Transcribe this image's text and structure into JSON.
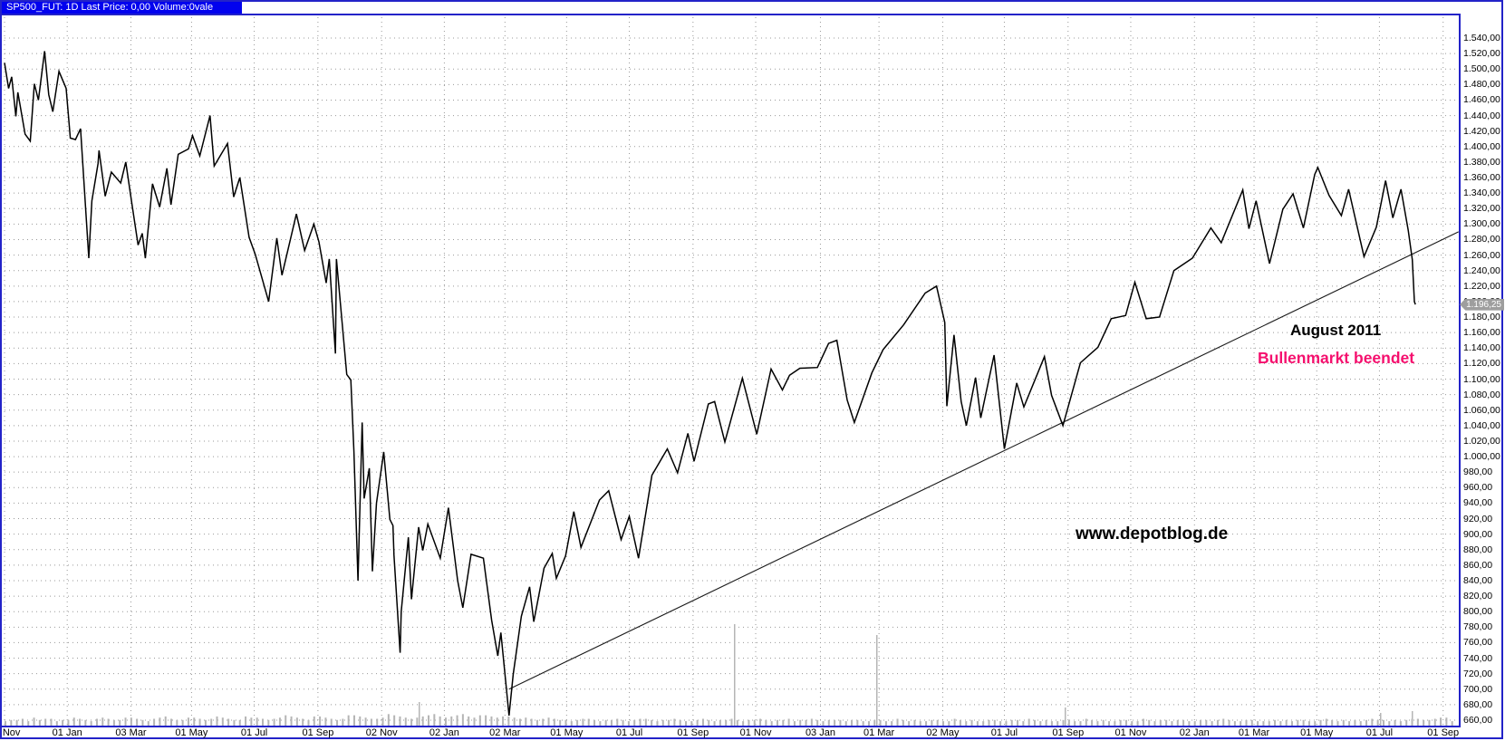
{
  "window": {
    "title_bar": "SP500_FUT: 1D Last Price: 0,00 Volume:0vale"
  },
  "annotations": {
    "august": "August 2011",
    "bullenmarkt": "Bullenmarkt beendet",
    "watermark": "www.depotblog.de"
  },
  "last_price_label": "1.196,25",
  "colors": {
    "frame_blue": "#2323c8",
    "titlebar_blue": "#0202ee",
    "grid_gray": "#999999",
    "volume_gray": "#b5b5b5",
    "annotation_pink": "#f5106e",
    "series_black": "#000000",
    "tag_gray": "#9e9e9e"
  },
  "chart_data": {
    "type": "line",
    "title": "SP500_FUT: 1D Last Price: 0,00 Volume:0vale",
    "xlabel": "",
    "ylabel": "",
    "grid": "dotted",
    "legend_position": "none",
    "ylim": [
      660,
      1540
    ],
    "ytick_step": 20,
    "ytick_format": "german-decimal ,00",
    "x_range": [
      "2007-11-01",
      "2011-09-18"
    ],
    "x_ticks": [
      {
        "label": "01 Nov",
        "date": "2007-11-01"
      },
      {
        "label": "01 Jan",
        "date": "2008-01-01"
      },
      {
        "label": "03 Mar",
        "date": "2008-03-03"
      },
      {
        "label": "01 May",
        "date": "2008-05-01"
      },
      {
        "label": "01 Jul",
        "date": "2008-07-01"
      },
      {
        "label": "01 Sep",
        "date": "2008-09-01"
      },
      {
        "label": "02 Nov",
        "date": "2008-11-02"
      },
      {
        "label": "02 Jan",
        "date": "2009-01-02"
      },
      {
        "label": "02 Mar",
        "date": "2009-03-02"
      },
      {
        "label": "01 May",
        "date": "2009-05-01"
      },
      {
        "label": "01 Jul",
        "date": "2009-07-01"
      },
      {
        "label": "01 Sep",
        "date": "2009-09-01"
      },
      {
        "label": "01 Nov",
        "date": "2009-11-01"
      },
      {
        "label": "03 Jan",
        "date": "2010-01-03"
      },
      {
        "label": "01 Mar",
        "date": "2010-03-01"
      },
      {
        "label": "02 May",
        "date": "2010-05-02"
      },
      {
        "label": "01 Jul",
        "date": "2010-07-01"
      },
      {
        "label": "01 Sep",
        "date": "2010-09-01"
      },
      {
        "label": "01 Nov",
        "date": "2010-11-01"
      },
      {
        "label": "02 Jan",
        "date": "2011-01-02"
      },
      {
        "label": "01 Mar",
        "date": "2011-03-01"
      },
      {
        "label": "01 May",
        "date": "2011-05-01"
      },
      {
        "label": "01 Jul",
        "date": "2011-07-01"
      },
      {
        "label": "01 Sep",
        "date": "2011-09-01"
      }
    ],
    "last_price": 1196.25,
    "series": [
      {
        "name": "SP500_FUT daily last price",
        "points": [
          [
            "2007-11-01",
            1508
          ],
          [
            "2007-11-05",
            1475
          ],
          [
            "2007-11-08",
            1490
          ],
          [
            "2007-11-12",
            1439
          ],
          [
            "2007-11-14",
            1470
          ],
          [
            "2007-11-21",
            1416
          ],
          [
            "2007-11-26",
            1407
          ],
          [
            "2007-11-30",
            1481
          ],
          [
            "2007-12-04",
            1460
          ],
          [
            "2007-12-10",
            1523
          ],
          [
            "2007-12-14",
            1467
          ],
          [
            "2007-12-18",
            1445
          ],
          [
            "2007-12-24",
            1497
          ],
          [
            "2007-12-31",
            1475
          ],
          [
            "2008-01-04",
            1411
          ],
          [
            "2008-01-09",
            1409
          ],
          [
            "2008-01-14",
            1423
          ],
          [
            "2008-01-22",
            1256
          ],
          [
            "2008-01-25",
            1330
          ],
          [
            "2008-01-31",
            1378
          ],
          [
            "2008-02-01",
            1395
          ],
          [
            "2008-02-07",
            1336
          ],
          [
            "2008-02-13",
            1367
          ],
          [
            "2008-02-22",
            1353
          ],
          [
            "2008-02-27",
            1380
          ],
          [
            "2008-03-04",
            1326
          ],
          [
            "2008-03-10",
            1273
          ],
          [
            "2008-03-14",
            1288
          ],
          [
            "2008-03-17",
            1256
          ],
          [
            "2008-03-24",
            1352
          ],
          [
            "2008-03-31",
            1322
          ],
          [
            "2008-04-07",
            1372
          ],
          [
            "2008-04-11",
            1325
          ],
          [
            "2008-04-18",
            1390
          ],
          [
            "2008-04-28",
            1397
          ],
          [
            "2008-05-02",
            1414
          ],
          [
            "2008-05-09",
            1388
          ],
          [
            "2008-05-19",
            1440
          ],
          [
            "2008-05-23",
            1375
          ],
          [
            "2008-06-05",
            1404
          ],
          [
            "2008-06-11",
            1335
          ],
          [
            "2008-06-17",
            1360
          ],
          [
            "2008-06-26",
            1283
          ],
          [
            "2008-07-02",
            1261
          ],
          [
            "2008-07-15",
            1200
          ],
          [
            "2008-07-23",
            1282
          ],
          [
            "2008-07-28",
            1234
          ],
          [
            "2008-08-11",
            1313
          ],
          [
            "2008-08-19",
            1266
          ],
          [
            "2008-08-28",
            1300
          ],
          [
            "2008-09-02",
            1277
          ],
          [
            "2008-09-09",
            1224
          ],
          [
            "2008-09-12",
            1255
          ],
          [
            "2008-09-18",
            1133
          ],
          [
            "2008-09-19",
            1255
          ],
          [
            "2008-09-29",
            1106
          ],
          [
            "2008-10-03",
            1099
          ],
          [
            "2008-10-06",
            1007
          ],
          [
            "2008-10-10",
            840
          ],
          [
            "2008-10-14",
            1044
          ],
          [
            "2008-10-16",
            946
          ],
          [
            "2008-10-21",
            985
          ],
          [
            "2008-10-24",
            852
          ],
          [
            "2008-10-28",
            940
          ],
          [
            "2008-11-04",
            1006
          ],
          [
            "2008-11-10",
            919
          ],
          [
            "2008-11-13",
            911
          ],
          [
            "2008-11-14",
            873
          ],
          [
            "2008-11-20",
            747
          ],
          [
            "2008-11-21",
            800
          ],
          [
            "2008-11-28",
            896
          ],
          [
            "2008-12-01",
            816
          ],
          [
            "2008-12-08",
            909
          ],
          [
            "2008-12-12",
            879
          ],
          [
            "2008-12-17",
            913
          ],
          [
            "2008-12-29",
            869
          ],
          [
            "2009-01-06",
            934
          ],
          [
            "2009-01-15",
            840
          ],
          [
            "2009-01-20",
            805
          ],
          [
            "2009-01-28",
            874
          ],
          [
            "2009-02-09",
            869
          ],
          [
            "2009-02-17",
            789
          ],
          [
            "2009-02-23",
            743
          ],
          [
            "2009-02-26",
            773
          ],
          [
            "2009-03-06",
            666
          ],
          [
            "2009-03-10",
            719
          ],
          [
            "2009-03-18",
            794
          ],
          [
            "2009-03-26",
            832
          ],
          [
            "2009-03-30",
            787
          ],
          [
            "2009-04-09",
            856
          ],
          [
            "2009-04-17",
            875
          ],
          [
            "2009-04-21",
            843
          ],
          [
            "2009-04-30",
            872
          ],
          [
            "2009-05-08",
            929
          ],
          [
            "2009-05-15",
            883
          ],
          [
            "2009-06-02",
            944
          ],
          [
            "2009-06-11",
            956
          ],
          [
            "2009-06-23",
            893
          ],
          [
            "2009-07-01",
            923
          ],
          [
            "2009-07-10",
            869
          ],
          [
            "2009-07-23",
            976
          ],
          [
            "2009-08-07",
            1010
          ],
          [
            "2009-08-17",
            979
          ],
          [
            "2009-08-27",
            1030
          ],
          [
            "2009-09-02",
            994
          ],
          [
            "2009-09-16",
            1068
          ],
          [
            "2009-09-22",
            1071
          ],
          [
            "2009-10-02",
            1019
          ],
          [
            "2009-10-19",
            1101
          ],
          [
            "2009-11-02",
            1029
          ],
          [
            "2009-11-16",
            1113
          ],
          [
            "2009-11-27",
            1086
          ],
          [
            "2009-12-04",
            1105
          ],
          [
            "2009-12-14",
            1114
          ],
          [
            "2009-12-31",
            1115
          ],
          [
            "2010-01-11",
            1146
          ],
          [
            "2010-01-19",
            1150
          ],
          [
            "2010-01-29",
            1073
          ],
          [
            "2010-02-05",
            1044
          ],
          [
            "2010-02-22",
            1108
          ],
          [
            "2010-03-05",
            1138
          ],
          [
            "2010-03-25",
            1170
          ],
          [
            "2010-04-15",
            1211
          ],
          [
            "2010-04-26",
            1220
          ],
          [
            "2010-05-04",
            1173
          ],
          [
            "2010-05-06",
            1065
          ],
          [
            "2010-05-13",
            1157
          ],
          [
            "2010-05-20",
            1071
          ],
          [
            "2010-05-25",
            1040
          ],
          [
            "2010-06-03",
            1102
          ],
          [
            "2010-06-08",
            1050
          ],
          [
            "2010-06-21",
            1131
          ],
          [
            "2010-07-01",
            1010
          ],
          [
            "2010-07-13",
            1095
          ],
          [
            "2010-07-20",
            1064
          ],
          [
            "2010-08-09",
            1129
          ],
          [
            "2010-08-16",
            1079
          ],
          [
            "2010-08-27",
            1040
          ],
          [
            "2010-09-13",
            1121
          ],
          [
            "2010-09-30",
            1141
          ],
          [
            "2010-10-13",
            1178
          ],
          [
            "2010-10-27",
            1182
          ],
          [
            "2010-11-05",
            1225
          ],
          [
            "2010-11-16",
            1178
          ],
          [
            "2010-11-29",
            1180
          ],
          [
            "2010-12-13",
            1240
          ],
          [
            "2010-12-31",
            1256
          ],
          [
            "2011-01-18",
            1295
          ],
          [
            "2011-01-28",
            1276
          ],
          [
            "2011-02-18",
            1344
          ],
          [
            "2011-02-24",
            1294
          ],
          [
            "2011-03-03",
            1330
          ],
          [
            "2011-03-16",
            1249
          ],
          [
            "2011-03-29",
            1319
          ],
          [
            "2011-04-08",
            1339
          ],
          [
            "2011-04-18",
            1295
          ],
          [
            "2011-04-29",
            1364
          ],
          [
            "2011-05-02",
            1373
          ],
          [
            "2011-05-13",
            1337
          ],
          [
            "2011-05-25",
            1311
          ],
          [
            "2011-06-01",
            1345
          ],
          [
            "2011-06-16",
            1258
          ],
          [
            "2011-06-28",
            1296
          ],
          [
            "2011-07-07",
            1356
          ],
          [
            "2011-07-14",
            1308
          ],
          [
            "2011-07-22",
            1345
          ],
          [
            "2011-07-29",
            1292
          ],
          [
            "2011-08-02",
            1254
          ],
          [
            "2011-08-04",
            1200
          ],
          [
            "2011-08-05",
            1196.25
          ]
        ]
      }
    ],
    "trendline": {
      "from": [
        "2009-03-06",
        700
      ],
      "to": [
        "2011-09-16",
        1290
      ]
    },
    "volume_profile": {
      "bar_heights": "34453645534465435654466543567544665457654476654568765477654588765569876567897678976887677656545654434554344543455434454334543445434454344534454344434433443354343344335434334433443543433443354343344335434434433443454334433343434433454343434544343455445663",
      "spikes": [
        {
          "x": 460,
          "h": 26
        },
        {
          "x": 808,
          "h": 112
        },
        {
          "x": 965,
          "h": 100
        },
        {
          "x": 1173,
          "h": 20
        },
        {
          "x": 1521,
          "h": 14
        },
        {
          "x": 1556,
          "h": 16
        }
      ]
    }
  }
}
